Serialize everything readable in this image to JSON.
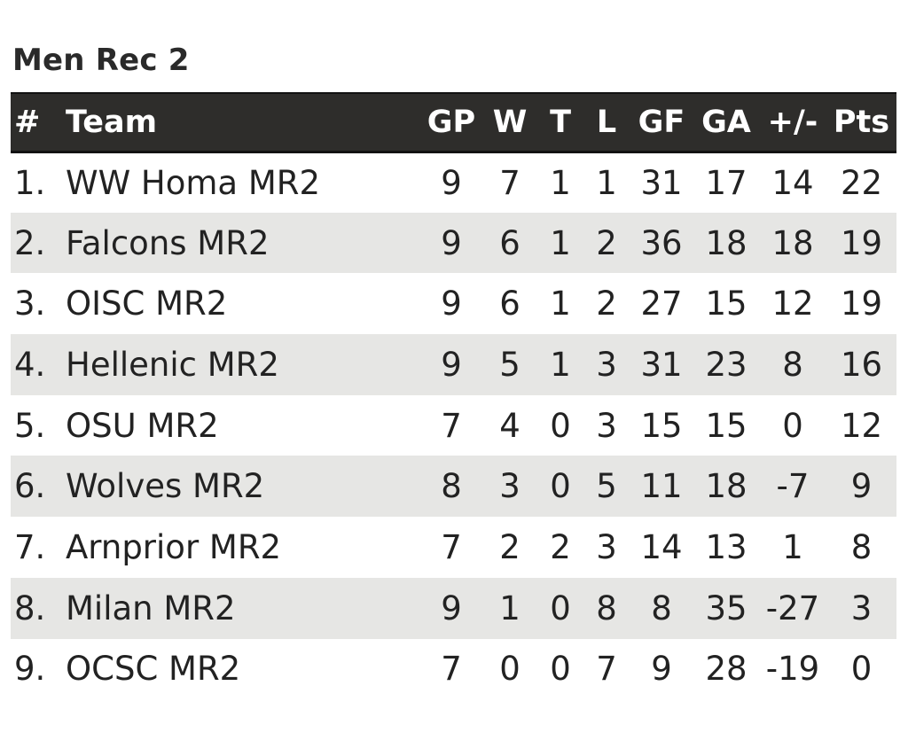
{
  "title": "Men Rec 2",
  "headers": {
    "rank": "#",
    "team": "Team",
    "gp": "GP",
    "w": "W",
    "t": "T",
    "l": "L",
    "gf": "GF",
    "ga": "GA",
    "diff": "+/-",
    "pts": "Pts"
  },
  "rows": [
    {
      "rank": "1.",
      "team": "WW Homa MR2",
      "gp": "9",
      "w": "7",
      "t": "1",
      "l": "1",
      "gf": "31",
      "ga": "17",
      "diff": "14",
      "pts": "22"
    },
    {
      "rank": "2.",
      "team": "Falcons MR2",
      "gp": "9",
      "w": "6",
      "t": "1",
      "l": "2",
      "gf": "36",
      "ga": "18",
      "diff": "18",
      "pts": "19"
    },
    {
      "rank": "3.",
      "team": "OISC MR2",
      "gp": "9",
      "w": "6",
      "t": "1",
      "l": "2",
      "gf": "27",
      "ga": "15",
      "diff": "12",
      "pts": "19"
    },
    {
      "rank": "4.",
      "team": "Hellenic MR2",
      "gp": "9",
      "w": "5",
      "t": "1",
      "l": "3",
      "gf": "31",
      "ga": "23",
      "diff": "8",
      "pts": "16"
    },
    {
      "rank": "5.",
      "team": "OSU MR2",
      "gp": "7",
      "w": "4",
      "t": "0",
      "l": "3",
      "gf": "15",
      "ga": "15",
      "diff": "0",
      "pts": "12"
    },
    {
      "rank": "6.",
      "team": "Wolves MR2",
      "gp": "8",
      "w": "3",
      "t": "0",
      "l": "5",
      "gf": "11",
      "ga": "18",
      "diff": "-7",
      "pts": "9"
    },
    {
      "rank": "7.",
      "team": "Arnprior MR2",
      "gp": "7",
      "w": "2",
      "t": "2",
      "l": "3",
      "gf": "14",
      "ga": "13",
      "diff": "1",
      "pts": "8"
    },
    {
      "rank": "8.",
      "team": "Milan MR2",
      "gp": "9",
      "w": "1",
      "t": "0",
      "l": "8",
      "gf": "8",
      "ga": "35",
      "diff": "-27",
      "pts": "3"
    },
    {
      "rank": "9.",
      "team": "OCSC MR2",
      "gp": "7",
      "w": "0",
      "t": "0",
      "l": "7",
      "gf": "9",
      "ga": "28",
      "diff": "-19",
      "pts": "0"
    }
  ]
}
